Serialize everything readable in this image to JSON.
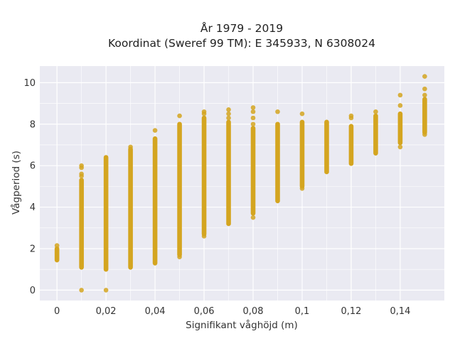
{
  "chart_data": {
    "type": "scatter",
    "title_lines": [
      "År 1979 - 2019",
      "Koordinat (Sweref 99 TM): E 345933, N 6308024"
    ],
    "xlabel": "Signifikant våghöjd (m)",
    "ylabel": "Vågperiod (s)",
    "xlim": [
      -0.007,
      0.158
    ],
    "ylim": [
      -0.5,
      10.8
    ],
    "x_ticks": [
      0,
      0.02,
      0.04,
      0.06,
      0.08,
      0.1,
      0.12,
      0.14
    ],
    "x_tick_labels": [
      "0",
      "0,02",
      "0,04",
      "0,06",
      "0,08",
      "0,1",
      "0,12",
      "0,14"
    ],
    "y_ticks": [
      0,
      2,
      4,
      6,
      8,
      10
    ],
    "y_tick_labels": [
      "0",
      "2",
      "4",
      "6",
      "8",
      "10"
    ],
    "grid": true,
    "colors": {
      "marker": "#d4a520",
      "plot_bg": "#eaeaf2",
      "grid": "#ffffff"
    },
    "columns": [
      {
        "x": 0.0,
        "range": [
          1.45,
          2.0
        ],
        "outliers": [
          2.15
        ]
      },
      {
        "x": 0.01,
        "range": [
          1.1,
          5.3
        ],
        "outliers": [
          0.0,
          5.5,
          5.6,
          5.9,
          6.0
        ]
      },
      {
        "x": 0.02,
        "range": [
          1.0,
          6.4
        ],
        "outliers": [
          0.0
        ]
      },
      {
        "x": 0.03,
        "range": [
          1.1,
          6.8
        ],
        "outliers": [
          6.9
        ]
      },
      {
        "x": 0.04,
        "range": [
          1.3,
          7.3
        ],
        "outliers": [
          7.7
        ]
      },
      {
        "x": 0.05,
        "range": [
          1.7,
          8.0
        ],
        "outliers": [
          1.6,
          8.4
        ]
      },
      {
        "x": 0.06,
        "range": [
          2.7,
          8.3
        ],
        "outliers": [
          2.6,
          8.5,
          8.6
        ]
      },
      {
        "x": 0.07,
        "range": [
          3.2,
          8.1
        ],
        "outliers": [
          8.3,
          8.5,
          8.7
        ]
      },
      {
        "x": 0.08,
        "range": [
          3.7,
          7.8
        ],
        "outliers": [
          3.5,
          8.0,
          8.3,
          8.6,
          8.8
        ]
      },
      {
        "x": 0.09,
        "range": [
          4.3,
          8.0
        ],
        "outliers": [
          8.6
        ]
      },
      {
        "x": 0.1,
        "range": [
          5.0,
          8.1
        ],
        "outliers": [
          4.9,
          8.5
        ]
      },
      {
        "x": 0.11,
        "range": [
          5.7,
          8.1
        ],
        "outliers": []
      },
      {
        "x": 0.12,
        "range": [
          6.1,
          7.9
        ],
        "outliers": [
          8.3,
          8.4
        ]
      },
      {
        "x": 0.13,
        "range": [
          6.6,
          8.4
        ],
        "outliers": [
          8.6
        ]
      },
      {
        "x": 0.14,
        "range": [
          7.1,
          8.5
        ],
        "outliers": [
          6.9,
          8.9,
          9.4
        ]
      },
      {
        "x": 0.15,
        "range": [
          7.6,
          9.2
        ],
        "outliers": [
          7.5,
          9.4,
          9.7,
          10.3
        ]
      }
    ]
  }
}
